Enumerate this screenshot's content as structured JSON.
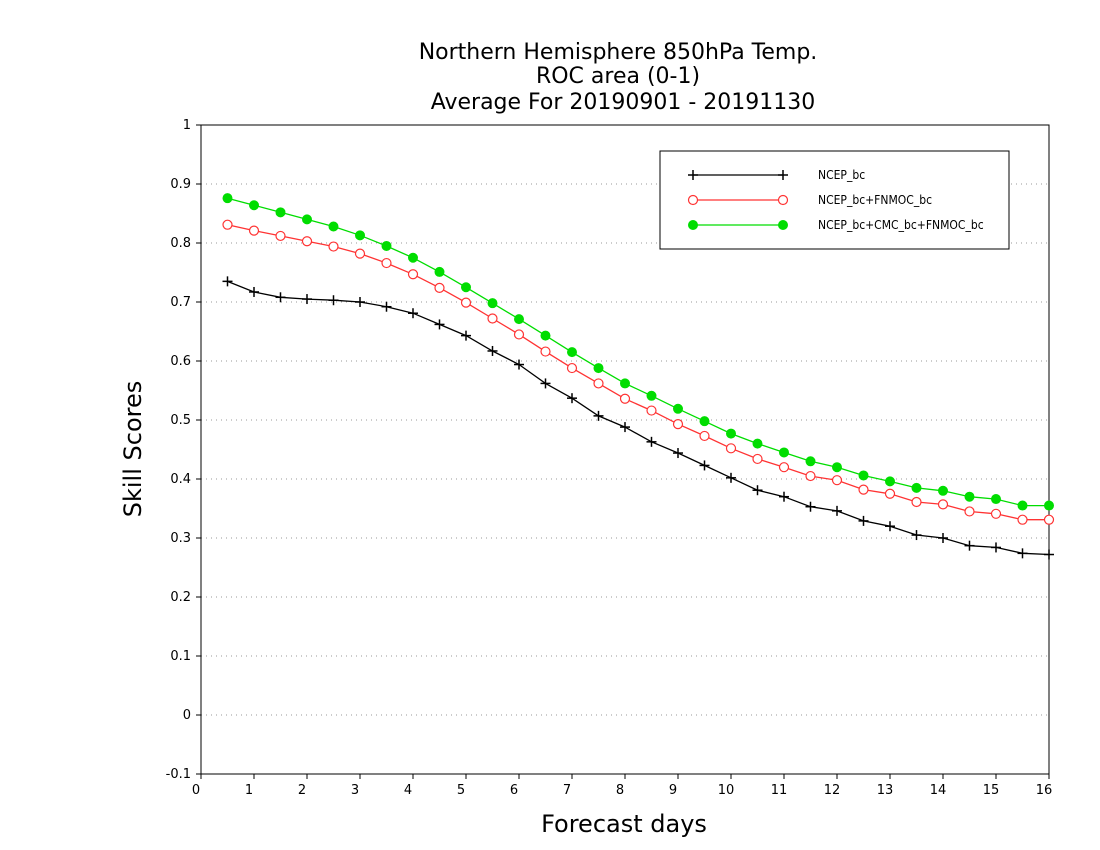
{
  "chart_data": {
    "type": "line",
    "title": [
      "Northern Hemisphere 850hPa Temp.",
      "ROC area (0-1)",
      "Average For 20190901 - 20191130"
    ],
    "xlabel": "Forecast days",
    "ylabel": "Skill Scores",
    "xlim": [
      0,
      16
    ],
    "ylim": [
      -0.1,
      1
    ],
    "xticks": [
      "0",
      "1",
      "2",
      "3",
      "4",
      "5",
      "6",
      "7",
      "8",
      "9",
      "10",
      "11",
      "12",
      "13",
      "14",
      "15",
      "16"
    ],
    "yticks": [
      "-0.1",
      "0",
      "0.1",
      "0.2",
      "0.3",
      "0.4",
      "0.5",
      "0.6",
      "0.7",
      "0.8",
      "0.9",
      "1"
    ],
    "grid": "horizontal-dotted",
    "legend_position": "top-right",
    "x": [
      0.5,
      1,
      1.5,
      2,
      2.5,
      3,
      3.5,
      4,
      4.5,
      5,
      5.5,
      6,
      6.5,
      7,
      7.5,
      8,
      8.5,
      9,
      9.5,
      10,
      10.5,
      11,
      11.5,
      12,
      12.5,
      13,
      13.5,
      14,
      14.5,
      15,
      15.5,
      16
    ],
    "series": [
      {
        "name": "NCEP_bc",
        "color": "#000000",
        "marker": "plus",
        "values": [
          0.735,
          0.717,
          0.708,
          0.705,
          0.703,
          0.7,
          0.692,
          0.681,
          0.662,
          0.643,
          0.617,
          0.594,
          0.562,
          0.537,
          0.507,
          0.488,
          0.463,
          0.444,
          0.423,
          0.402,
          0.381,
          0.37,
          0.353,
          0.346,
          0.329,
          0.32,
          0.305,
          0.3,
          0.287,
          0.284,
          0.274,
          0.272
        ]
      },
      {
        "name": "NCEP_bc+FNMOC_bc",
        "color": "#ff3333",
        "marker": "open-circle",
        "values": [
          0.831,
          0.821,
          0.812,
          0.803,
          0.794,
          0.782,
          0.766,
          0.747,
          0.724,
          0.699,
          0.672,
          0.645,
          0.616,
          0.588,
          0.562,
          0.536,
          0.516,
          0.493,
          0.473,
          0.452,
          0.434,
          0.42,
          0.405,
          0.398,
          0.382,
          0.375,
          0.361,
          0.357,
          0.345,
          0.341,
          0.331,
          0.331
        ]
      },
      {
        "name": "NCEP_bc+CMC_bc+FNMOC_bc",
        "color": "#00dd00",
        "marker": "filled-circle",
        "values": [
          0.876,
          0.864,
          0.852,
          0.84,
          0.828,
          0.813,
          0.795,
          0.775,
          0.751,
          0.725,
          0.698,
          0.671,
          0.643,
          0.615,
          0.588,
          0.562,
          0.541,
          0.519,
          0.498,
          0.477,
          0.46,
          0.445,
          0.43,
          0.42,
          0.406,
          0.396,
          0.385,
          0.38,
          0.37,
          0.366,
          0.355,
          0.355
        ]
      }
    ]
  }
}
